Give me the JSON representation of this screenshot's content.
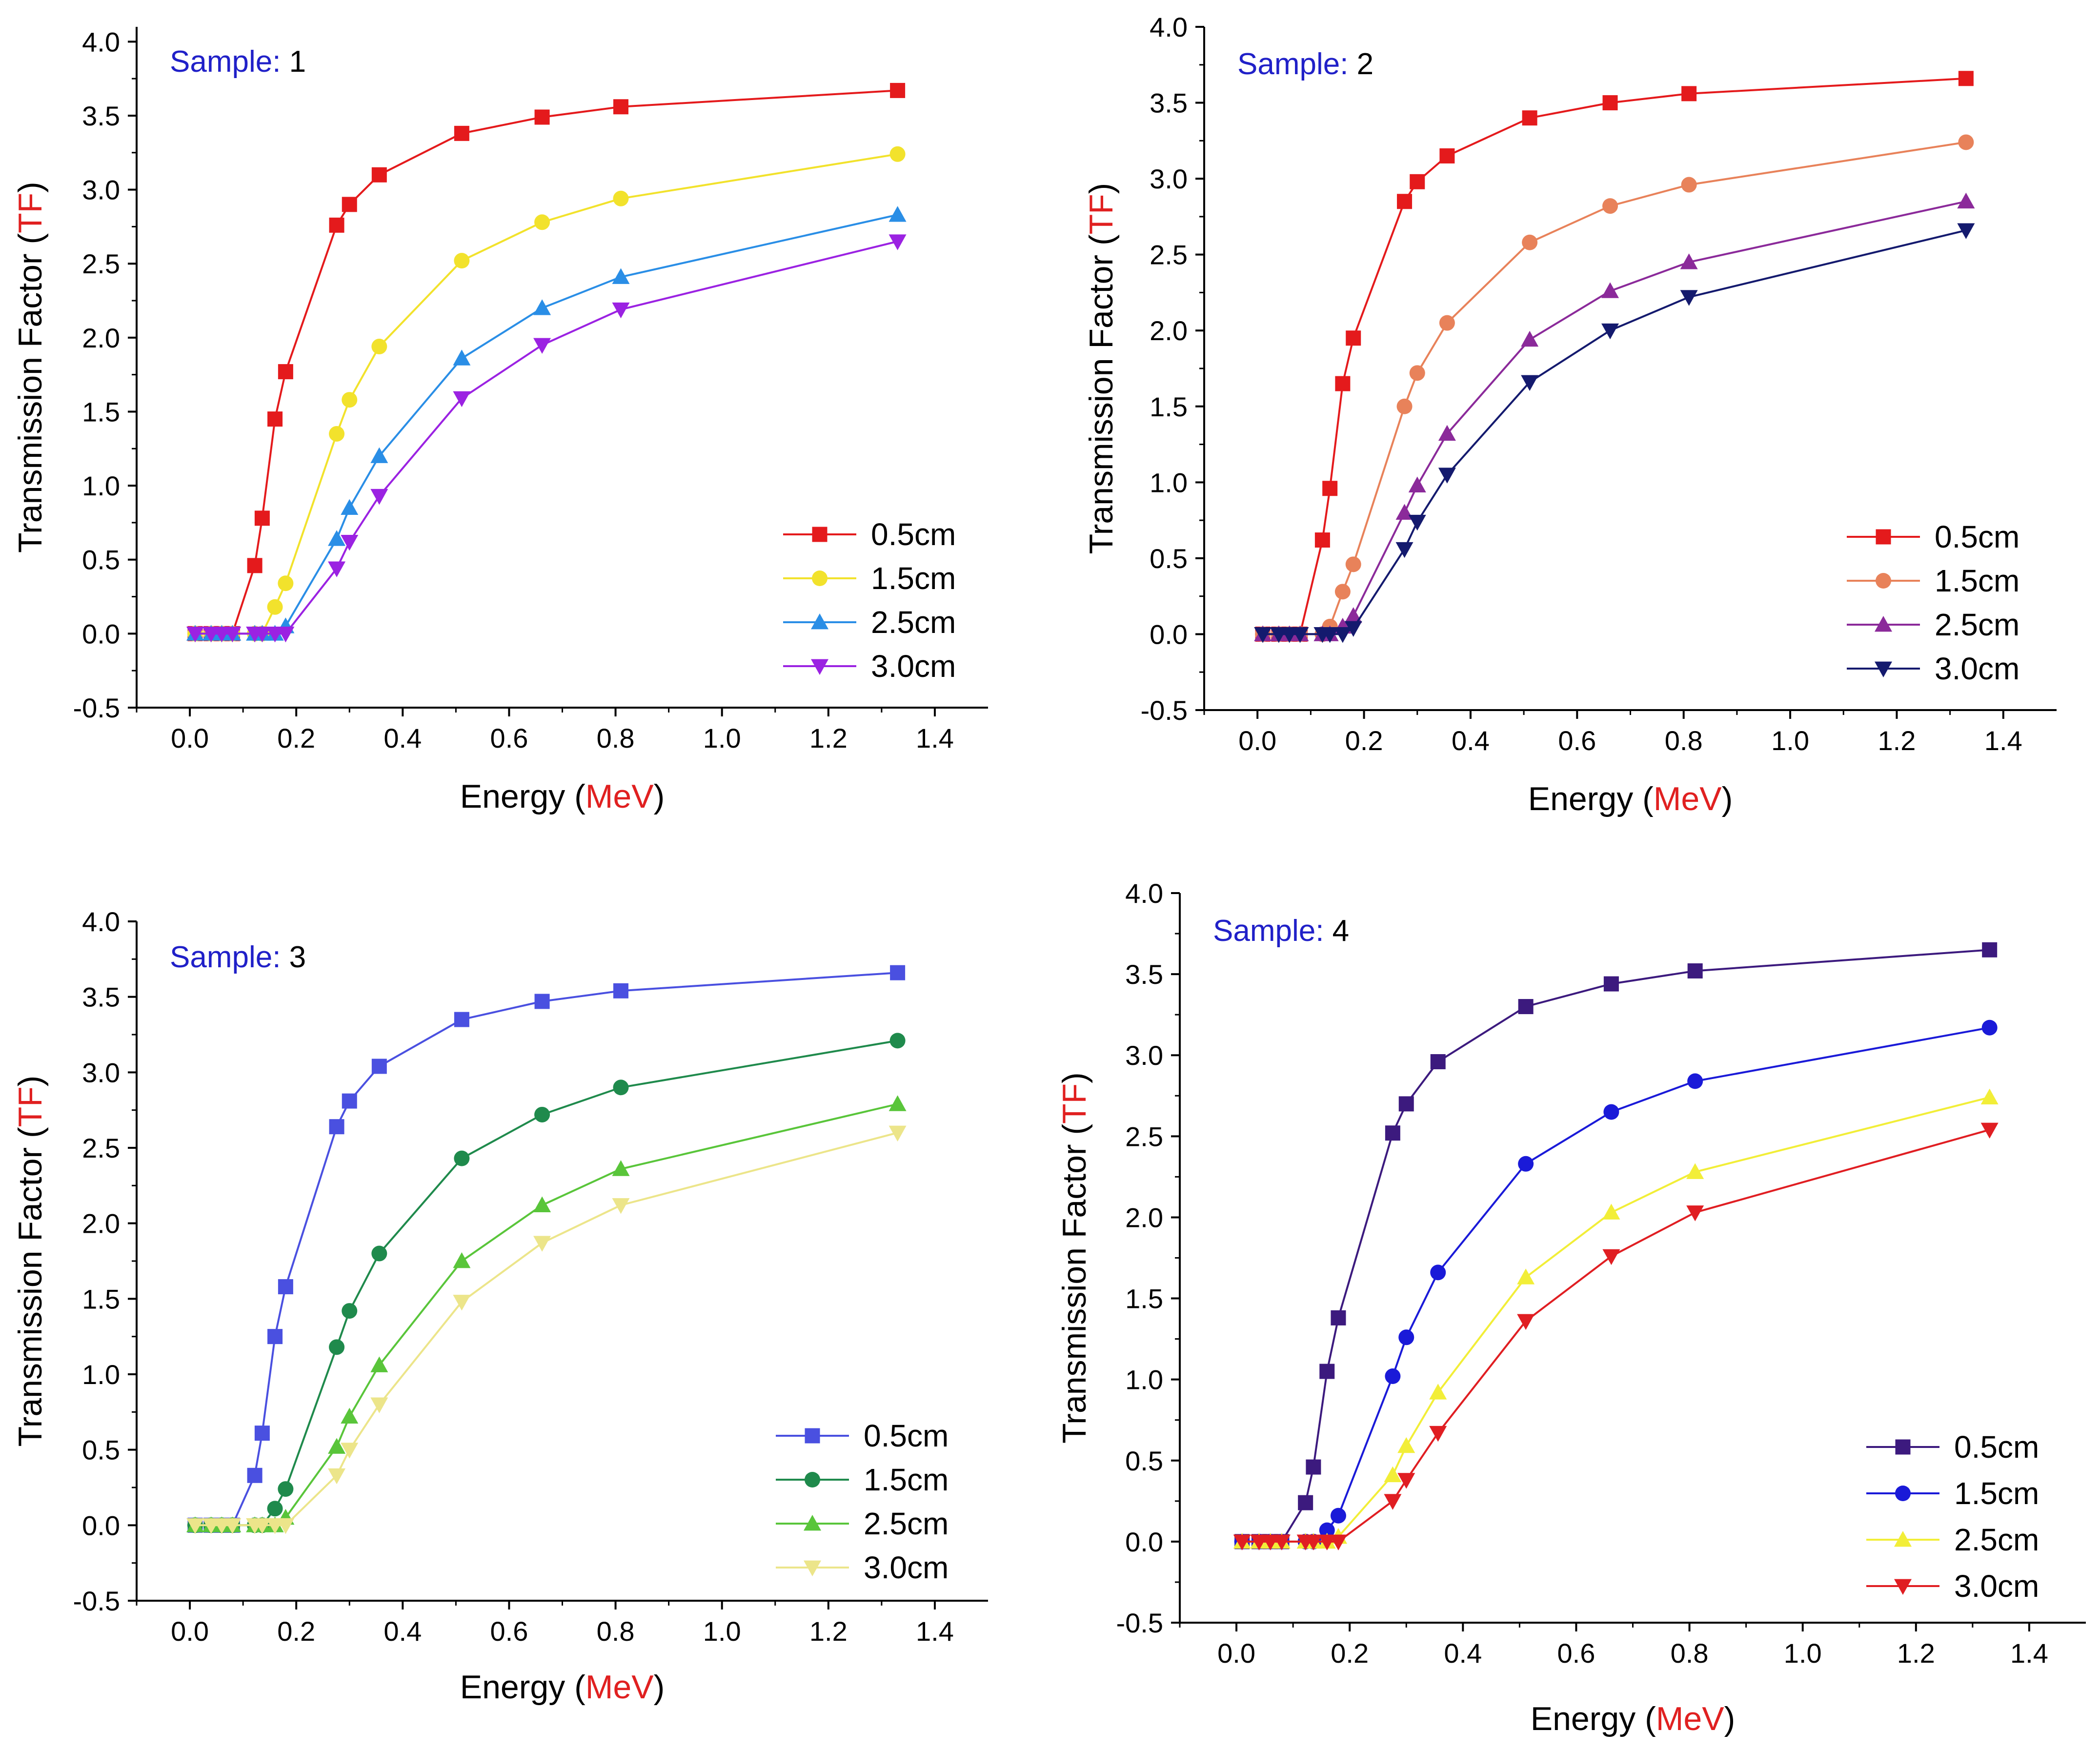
{
  "x_energies": [
    0.01,
    0.04,
    0.06,
    0.08,
    0.122,
    0.136,
    0.16,
    0.18,
    0.276,
    0.3,
    0.356,
    0.511,
    0.662,
    0.81,
    1.33
  ],
  "chart_data": [
    {
      "type": "line",
      "sample_label": "Sample:",
      "sample_number": "1",
      "xlabel_prefix": "Energy (",
      "xlabel_unit": "MeV",
      "xlabel_suffix": ")",
      "ylabel_prefix": "Transmission Factor (",
      "ylabel_unit": "TF",
      "ylabel_suffix": ")",
      "xlim": [
        -0.1,
        1.5
      ],
      "ylim": [
        -0.5,
        4.1
      ],
      "x_ticks": [
        "0.0",
        "0.2",
        "0.4",
        "0.6",
        "0.8",
        "1.0",
        "1.2",
        "1.4"
      ],
      "y_ticks": [
        "-0.5",
        "0.0",
        "0.5",
        "1.0",
        "1.5",
        "2.0",
        "2.5",
        "3.0",
        "3.5",
        "4.0"
      ],
      "legend_position": "bottom-right",
      "series": [
        {
          "name": "0.5cm",
          "color": "#e41a1c",
          "marker": "square",
          "values": [
            0,
            0,
            0,
            0,
            0.46,
            0.78,
            1.45,
            1.77,
            2.76,
            2.9,
            3.1,
            3.38,
            3.49,
            3.56,
            3.67
          ]
        },
        {
          "name": "1.5cm",
          "color": "#f2e22c",
          "marker": "circle",
          "values": [
            0,
            0,
            0,
            0,
            0,
            0,
            0.18,
            0.34,
            1.35,
            1.58,
            1.94,
            2.52,
            2.78,
            2.94,
            3.24
          ]
        },
        {
          "name": "2.5cm",
          "color": "#2a8ee6",
          "marker": "triangle-up",
          "values": [
            0,
            0,
            0,
            0,
            0,
            0,
            0,
            0.05,
            0.64,
            0.85,
            1.2,
            1.86,
            2.2,
            2.41,
            2.83
          ]
        },
        {
          "name": "3.0cm",
          "color": "#9b22e2",
          "marker": "triangle-down",
          "values": [
            0,
            0,
            0,
            0,
            0,
            0,
            0,
            0,
            0.44,
            0.62,
            0.93,
            1.59,
            1.95,
            2.19,
            2.65
          ]
        }
      ]
    },
    {
      "type": "line",
      "sample_label": "Sample:",
      "sample_number": "2",
      "xlabel_prefix": "Energy (",
      "xlabel_unit": "MeV",
      "xlabel_suffix": ")",
      "ylabel_prefix": "Transmission Factor (",
      "ylabel_unit": "TF",
      "ylabel_suffix": ")",
      "xlim": [
        -0.1,
        1.5
      ],
      "ylim": [
        -0.5,
        4.0
      ],
      "x_ticks": [
        "0.0",
        "0.2",
        "0.4",
        "0.6",
        "0.8",
        "1.0",
        "1.2",
        "1.4"
      ],
      "y_ticks": [
        "-0.5",
        "0.0",
        "0.5",
        "1.0",
        "1.5",
        "2.0",
        "2.5",
        "3.0",
        "3.5",
        "4.0"
      ],
      "legend_position": "bottom-right",
      "series": [
        {
          "name": "0.5cm",
          "color": "#e41a1c",
          "marker": "square",
          "values": [
            0,
            0,
            0,
            0,
            0.62,
            0.96,
            1.65,
            1.95,
            2.85,
            2.98,
            3.15,
            3.4,
            3.5,
            3.56,
            3.66
          ]
        },
        {
          "name": "1.5cm",
          "color": "#e8825a",
          "marker": "circle",
          "values": [
            0,
            0,
            0,
            0,
            0,
            0.05,
            0.28,
            0.46,
            1.5,
            1.72,
            2.05,
            2.58,
            2.82,
            2.96,
            3.24
          ]
        },
        {
          "name": "2.5cm",
          "color": "#8b2a9a",
          "marker": "triangle-up",
          "values": [
            0,
            0,
            0,
            0,
            0,
            0,
            0.05,
            0.12,
            0.8,
            0.98,
            1.32,
            1.94,
            2.26,
            2.45,
            2.85
          ]
        },
        {
          "name": "3.0cm",
          "color": "#141a6e",
          "marker": "triangle-down",
          "values": [
            0,
            0,
            0,
            0,
            0,
            0,
            0,
            0.04,
            0.56,
            0.74,
            1.05,
            1.66,
            2.0,
            2.22,
            2.66
          ]
        }
      ]
    },
    {
      "type": "line",
      "sample_label": "Sample:",
      "sample_number": "3",
      "xlabel_prefix": "Energy (",
      "xlabel_unit": "MeV",
      "xlabel_suffix": ")",
      "ylabel_prefix": "Transmission Factor (",
      "ylabel_unit": "TF",
      "ylabel_suffix": ")",
      "xlim": [
        -0.1,
        1.5
      ],
      "ylim": [
        -0.5,
        4.0
      ],
      "x_ticks": [
        "0.0",
        "0.2",
        "0.4",
        "0.6",
        "0.8",
        "1.0",
        "1.2",
        "1.4"
      ],
      "y_ticks": [
        "-0.5",
        "0.0",
        "0.5",
        "1.0",
        "1.5",
        "2.0",
        "2.5",
        "3.0",
        "3.5",
        "4.0"
      ],
      "legend_position": "bottom-right",
      "series": [
        {
          "name": "0.5cm",
          "color": "#4a50e0",
          "marker": "square",
          "values": [
            0,
            0,
            0,
            0,
            0.33,
            0.61,
            1.25,
            1.58,
            2.64,
            2.81,
            3.04,
            3.35,
            3.47,
            3.54,
            3.66
          ]
        },
        {
          "name": "1.5cm",
          "color": "#1f8a4c",
          "marker": "circle",
          "values": [
            0,
            0,
            0,
            0,
            0,
            0,
            0.11,
            0.24,
            1.18,
            1.42,
            1.8,
            2.43,
            2.72,
            2.9,
            3.21
          ]
        },
        {
          "name": "2.5cm",
          "color": "#59c53a",
          "marker": "triangle-up",
          "values": [
            0,
            0,
            0,
            0,
            0,
            0,
            0,
            0.05,
            0.52,
            0.72,
            1.06,
            1.75,
            2.12,
            2.36,
            2.79
          ]
        },
        {
          "name": "3.0cm",
          "color": "#ece58a",
          "marker": "triangle-down",
          "values": [
            0,
            0,
            0,
            0,
            0,
            0,
            0,
            0,
            0.33,
            0.5,
            0.8,
            1.48,
            1.87,
            2.12,
            2.6
          ]
        }
      ]
    },
    {
      "type": "line",
      "sample_label": "Sample:",
      "sample_number": "4",
      "xlabel_prefix": "Energy (",
      "xlabel_unit": "MeV",
      "xlabel_suffix": ")",
      "ylabel_prefix": "Transmission Factor (",
      "ylabel_unit": "TF",
      "ylabel_suffix": ")",
      "xlim": [
        -0.1,
        1.5
      ],
      "ylim": [
        -0.5,
        4.0
      ],
      "x_ticks": [
        "0.0",
        "0.2",
        "0.4",
        "0.6",
        "0.8",
        "1.0",
        "1.2",
        "1.4"
      ],
      "y_ticks": [
        "-0.5",
        "0.0",
        "0.5",
        "1.0",
        "1.5",
        "2.0",
        "2.5",
        "3.0",
        "3.5",
        "4.0"
      ],
      "legend_position": "bottom-right",
      "series": [
        {
          "name": "0.5cm",
          "color": "#3c1a7e",
          "marker": "square",
          "values": [
            0,
            0,
            0,
            0,
            0.24,
            0.46,
            1.05,
            1.38,
            2.52,
            2.7,
            2.96,
            3.3,
            3.44,
            3.52,
            3.65
          ]
        },
        {
          "name": "1.5cm",
          "color": "#1a1ad8",
          "marker": "circle",
          "values": [
            0,
            0,
            0,
            0,
            0,
            0,
            0.07,
            0.16,
            1.02,
            1.26,
            1.66,
            2.33,
            2.65,
            2.84,
            3.17
          ]
        },
        {
          "name": "2.5cm",
          "color": "#f2ee38",
          "marker": "triangle-up",
          "values": [
            0,
            0,
            0,
            0,
            0,
            0,
            0,
            0.03,
            0.41,
            0.59,
            0.92,
            1.63,
            2.03,
            2.28,
            2.74
          ]
        },
        {
          "name": "3.0cm",
          "color": "#e01e22",
          "marker": "triangle-down",
          "values": [
            0,
            0,
            0,
            0,
            0,
            0,
            0,
            0,
            0.25,
            0.38,
            0.67,
            1.36,
            1.76,
            2.03,
            2.54
          ]
        }
      ]
    }
  ],
  "styles": {
    "axis_color": "#000000",
    "label_color": "#000000",
    "unit_color": "#e02020",
    "sample_color": "#2020c8"
  }
}
